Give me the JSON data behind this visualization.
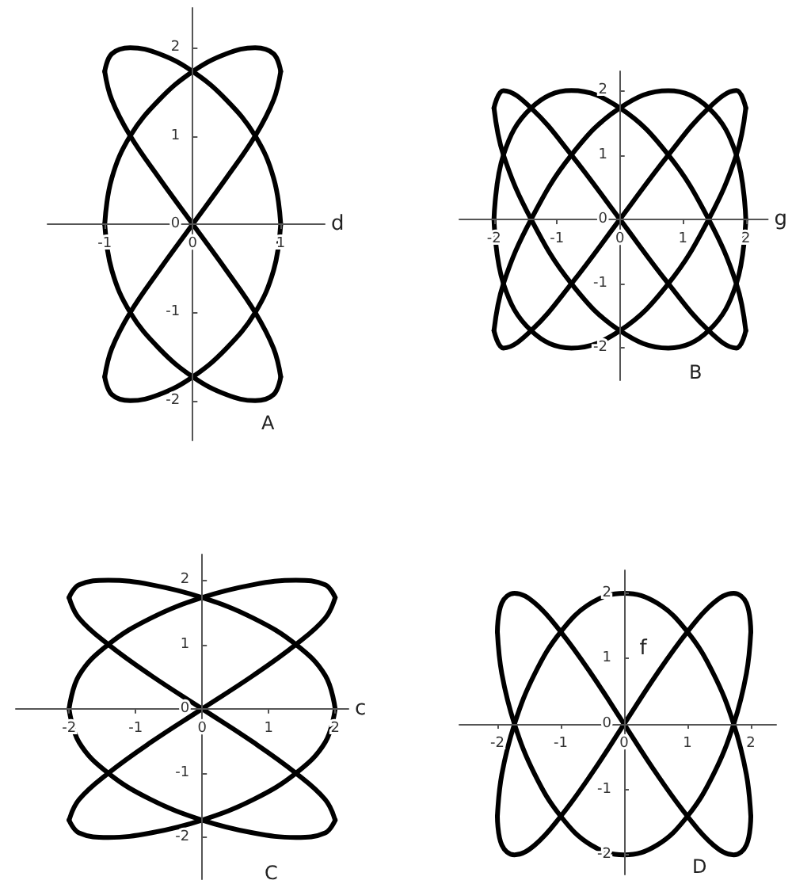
{
  "chart_data": [
    {
      "type": "line",
      "title": "A",
      "xlabel": "d",
      "color": "#000000",
      "marker": "none",
      "grid": false,
      "xlim": [
        -1.65,
        1.5
      ],
      "ylim": [
        -2.45,
        2.45
      ],
      "xticks": [
        -1,
        0,
        1
      ],
      "yticks": [
        -2,
        -1,
        0,
        1,
        2
      ],
      "series": [
        {
          "x": [
            -1,
            -0.92,
            -0.71,
            -0.38,
            0,
            0.38,
            0.71,
            0.92,
            1
          ],
          "values": [
            -1.73,
            -1.41,
            -1,
            -0.52,
            0,
            0.52,
            1,
            1.41,
            1.73
          ]
        },
        {
          "x": [
            -1,
            -0.92,
            -0.71,
            -0.38,
            0,
            0.38,
            0.71,
            0.92,
            1
          ],
          "values": [
            0,
            0.52,
            1,
            1.41,
            1.73,
            1.93,
            2,
            1.93,
            1.73
          ]
        },
        {
          "x": [
            -1,
            -0.92,
            -0.71,
            -0.38,
            0,
            0.38,
            0.71,
            0.92,
            1
          ],
          "values": [
            0,
            -0.52,
            -1,
            -1.41,
            -1.73,
            -1.93,
            -2,
            -1.93,
            -1.73
          ]
        },
        {
          "x": [
            -1,
            -0.92,
            -0.71,
            -0.38,
            0,
            0.38,
            0.71,
            0.92,
            1
          ],
          "values": [
            1.73,
            1.41,
            1,
            0.52,
            0,
            -0.52,
            -1,
            -1.41,
            -1.73
          ]
        },
        {
          "x": [
            -1,
            -0.92,
            -0.71,
            -0.38,
            0,
            0.38,
            0.71,
            0.92,
            1
          ],
          "values": [
            1.73,
            1.93,
            2,
            1.93,
            1.73,
            1.41,
            1,
            0.52,
            0
          ]
        },
        {
          "x": [
            -1,
            -0.92,
            -0.71,
            -0.38,
            0,
            0.38,
            0.71,
            0.92,
            1
          ],
          "values": [
            -1.73,
            -1.93,
            -2,
            -1.93,
            -1.73,
            -1.41,
            -1,
            -0.52,
            0
          ]
        }
      ]
    },
    {
      "type": "line",
      "title": "B",
      "xlabel": "g",
      "color": "#000000",
      "marker": "none",
      "grid": false,
      "xlim": [
        -2.55,
        2.35
      ],
      "ylim": [
        -2.5,
        2.3
      ],
      "xticks": [
        -2,
        -1,
        0,
        1,
        2
      ],
      "yticks": [
        -2,
        -1,
        0,
        1,
        2
      ],
      "series": [
        {
          "x": [
            -2,
            -1.85,
            -1.41,
            -0.77,
            0,
            0.77,
            1.41,
            1.85,
            2
          ],
          "values": [
            -1.73,
            -2,
            -1.73,
            -1,
            0,
            1,
            1.73,
            2,
            1.73
          ]
        },
        {
          "x": [
            -2,
            -1.85,
            -1.41,
            -0.77,
            0,
            0.77,
            1.41,
            1.85,
            2
          ],
          "values": [
            0,
            -1,
            -1.73,
            -2,
            -1.73,
            -1,
            0,
            1,
            1.73
          ]
        },
        {
          "x": [
            -2,
            -1.85,
            -1.41,
            -0.77,
            0,
            0.77,
            1.41,
            1.85,
            2
          ],
          "values": [
            0,
            1,
            1.73,
            2,
            1.73,
            1,
            0,
            -1,
            -1.73
          ]
        },
        {
          "x": [
            -2,
            -1.85,
            -1.41,
            -0.77,
            0,
            0.77,
            1.41,
            1.85,
            2
          ],
          "values": [
            1.73,
            2,
            1.73,
            1,
            0,
            -1,
            -1.73,
            -2,
            -1.73
          ]
        },
        {
          "x": [
            -2,
            -1.85,
            -1.41,
            -0.77,
            0,
            0.77,
            1.41,
            1.85,
            2
          ],
          "values": [
            1.73,
            1,
            0,
            -1,
            -1.73,
            -2,
            -1.73,
            -1,
            0
          ]
        },
        {
          "x": [
            -2,
            -1.85,
            -1.41,
            -0.77,
            0,
            0.77,
            1.41,
            1.85,
            2
          ],
          "values": [
            -1.73,
            -1,
            0,
            1,
            1.73,
            2,
            1.73,
            1,
            0
          ]
        }
      ]
    },
    {
      "type": "line",
      "title": "C",
      "xlabel": "c",
      "color": "#000000",
      "marker": "none",
      "grid": false,
      "xlim": [
        -2.8,
        2.2
      ],
      "ylim": [
        -2.65,
        2.4
      ],
      "xticks": [
        -2,
        -1,
        0,
        1,
        2
      ],
      "yticks": [
        -2,
        -1,
        0,
        1,
        2
      ],
      "series": [
        {
          "x": [
            -2,
            -1.85,
            -1.41,
            -0.77,
            0,
            0.77,
            1.41,
            1.85,
            2
          ],
          "values": [
            -1.73,
            -1.41,
            -1,
            -0.52,
            0,
            0.52,
            1,
            1.41,
            1.73
          ]
        },
        {
          "x": [
            -2,
            -1.85,
            -1.41,
            -0.77,
            0,
            0.77,
            1.41,
            1.85,
            2
          ],
          "values": [
            0,
            0.52,
            1,
            1.41,
            1.73,
            1.93,
            2,
            1.93,
            1.73
          ]
        },
        {
          "x": [
            -2,
            -1.85,
            -1.41,
            -0.77,
            0,
            0.77,
            1.41,
            1.85,
            2
          ],
          "values": [
            0,
            -0.52,
            -1,
            -1.41,
            -1.73,
            -1.93,
            -2,
            -1.93,
            -1.73
          ]
        },
        {
          "x": [
            -2,
            -1.85,
            -1.41,
            -0.77,
            0,
            0.77,
            1.41,
            1.85,
            2
          ],
          "values": [
            1.73,
            1.41,
            1,
            0.52,
            0,
            -0.52,
            -1,
            -1.41,
            -1.73
          ]
        },
        {
          "x": [
            -2,
            -1.85,
            -1.41,
            -0.77,
            0,
            0.77,
            1.41,
            1.85,
            2
          ],
          "values": [
            1.73,
            1.93,
            2,
            1.93,
            1.73,
            1.41,
            1,
            0.52,
            0
          ]
        },
        {
          "x": [
            -2,
            -1.85,
            -1.41,
            -0.77,
            0,
            0.77,
            1.41,
            1.85,
            2
          ],
          "values": [
            -1.73,
            -1.93,
            -2,
            -1.93,
            -1.73,
            -1.41,
            -1,
            -0.52,
            0
          ]
        }
      ]
    },
    {
      "type": "line",
      "title": "D",
      "ylabel": "f",
      "color": "#000000",
      "marker": "none",
      "grid": false,
      "xlim": [
        -2.6,
        2.4
      ],
      "ylim": [
        -2.3,
        2.35
      ],
      "xticks": [
        -2,
        -1,
        0,
        1,
        2
      ],
      "yticks": [
        -2,
        -1,
        0,
        1,
        2
      ],
      "series": [
        {
          "x": [
            -2,
            -1.93,
            -1.73,
            -1.41,
            -1,
            -0.52,
            0,
            0.52,
            1,
            1.41,
            1.73,
            1.93,
            2
          ],
          "values": [
            -1.41,
            -1.85,
            -2,
            -1.85,
            -1.41,
            -0.77,
            0,
            0.77,
            1.41,
            1.85,
            2,
            1.85,
            1.41
          ]
        },
        {
          "x": [
            -2,
            -1.93,
            -1.73,
            -1.41,
            -1,
            -0.52,
            0,
            0.52,
            1,
            1.41,
            1.73,
            1.93,
            2
          ],
          "values": [
            1.41,
            0.77,
            0,
            -0.77,
            -1.41,
            -1.85,
            -2,
            -1.85,
            -1.41,
            -0.77,
            0,
            0.77,
            1.41
          ]
        },
        {
          "x": [
            -2,
            -1.93,
            -1.73,
            -1.41,
            -1,
            -0.52,
            0,
            0.52,
            1,
            1.41,
            1.73,
            1.93,
            2
          ],
          "values": [
            1.41,
            1.85,
            2,
            1.85,
            1.41,
            0.77,
            0,
            -0.77,
            -1.41,
            -1.85,
            -2,
            -1.85,
            -1.41
          ]
        },
        {
          "x": [
            -2,
            -1.93,
            -1.73,
            -1.41,
            -1,
            -0.52,
            0,
            0.52,
            1,
            1.41,
            1.73,
            1.93,
            2
          ],
          "values": [
            -1.41,
            -0.77,
            0,
            0.77,
            1.41,
            1.85,
            2,
            1.85,
            1.41,
            0.77,
            0,
            -0.77,
            -1.41
          ]
        }
      ]
    }
  ]
}
